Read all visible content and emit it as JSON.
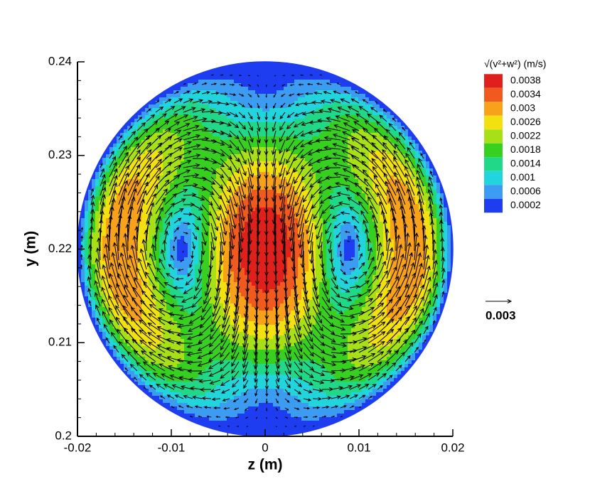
{
  "chart_data": {
    "type": "contour-vector",
    "xlabel": "z  (m)",
    "ylabel": "y  (m)",
    "xlim": [
      -0.02,
      0.02
    ],
    "xticks": [
      -0.02,
      -0.01,
      0,
      0.01,
      0.02
    ],
    "ylim": [
      0.2,
      0.24
    ],
    "yticks": [
      0.2,
      0.21,
      0.22,
      0.23,
      0.24
    ],
    "legend_title": "√(v²+w²)  (m/s)",
    "levels": [
      0.0038,
      0.0034,
      0.003,
      0.0026,
      0.0022,
      0.0018,
      0.0014,
      0.001,
      0.0006,
      0.0002
    ],
    "level_colors": [
      "#e0201c",
      "#f05a1e",
      "#f7a21a",
      "#f2e010",
      "#a8e018",
      "#38d020",
      "#20d888",
      "#22d4dc",
      "#3c9cf2",
      "#1e3cf0"
    ],
    "reference_vector": 0.003
  }
}
